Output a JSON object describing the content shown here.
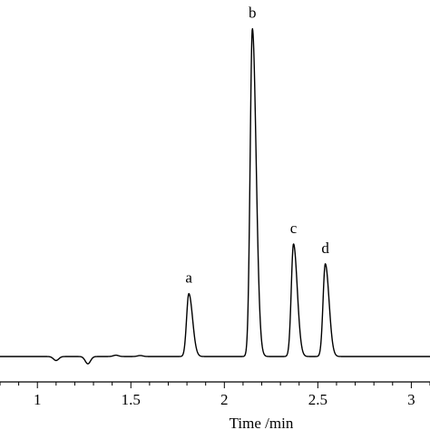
{
  "chart_data": {
    "type": "line",
    "title": "",
    "xlabel": "Time /min",
    "ylabel": "",
    "xlim": [
      0.8,
      3.1
    ],
    "ylim": [
      -0.03,
      1.06
    ],
    "x_ticks": [
      1,
      1.5,
      2,
      2.5,
      3
    ],
    "x_tick_labels": [
      "1",
      "1.5",
      "2",
      "2.5",
      "3"
    ],
    "minor_tick_step": 0.1,
    "grid": false,
    "legend": "none",
    "line_color": "#000000",
    "baseline": 0.0,
    "baseline_features": [
      {
        "t": 1.1,
        "depth": -0.012
      },
      {
        "t": 1.27,
        "depth": -0.022
      },
      {
        "t": 1.42,
        "depth": 0.004
      },
      {
        "t": 1.55,
        "depth": 0.003
      }
    ],
    "peaks": [
      {
        "label": "a",
        "t": 1.81,
        "height": 0.19
      },
      {
        "label": "b",
        "t": 2.15,
        "height": 0.99
      },
      {
        "label": "c",
        "t": 2.37,
        "height": 0.34
      },
      {
        "label": "d",
        "t": 2.54,
        "height": 0.28
      }
    ]
  }
}
